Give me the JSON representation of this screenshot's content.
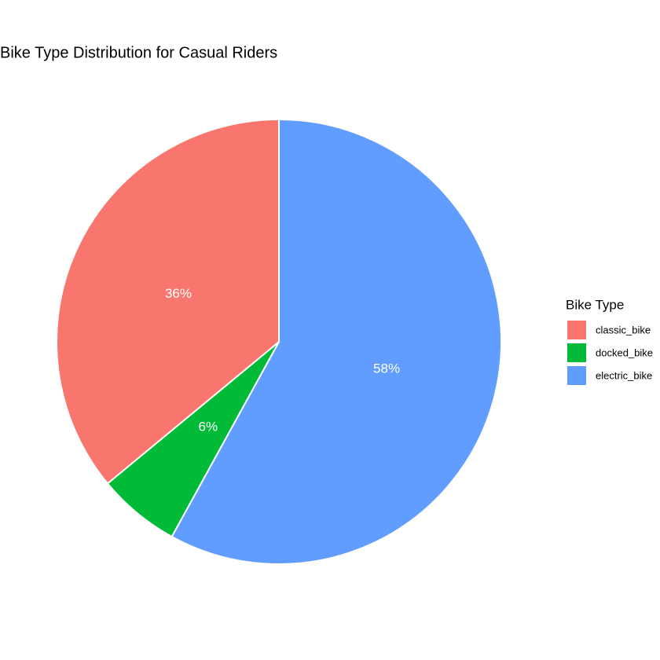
{
  "chart_data": {
    "type": "pie",
    "title": "Bike Type Distribution for Casual Riders",
    "legend_title": "Bike Type",
    "categories": [
      "classic_bike",
      "docked_bike",
      "electric_bike"
    ],
    "values": [
      36,
      6,
      58
    ],
    "value_labels": [
      "36%",
      "6%",
      "58%"
    ],
    "colors": [
      "#f8766d",
      "#00ba38",
      "#619cff"
    ],
    "legend": "right"
  }
}
